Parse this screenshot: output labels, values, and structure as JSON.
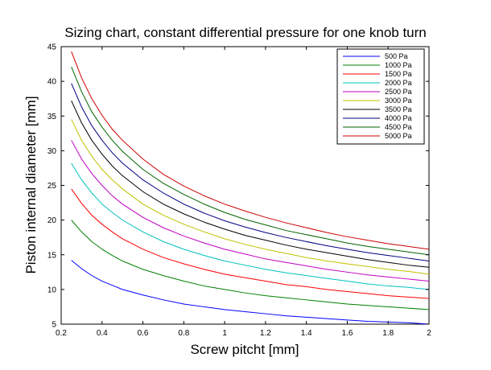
{
  "chart_data": {
    "type": "line",
    "title": "Sizing chart, constant differential pressure for one knob turn",
    "xlabel": "Screw pitcht [mm]",
    "ylabel": "Piston internal diameter [mm]",
    "xlim": [
      0.2,
      2.0
    ],
    "ylim": [
      5,
      45
    ],
    "xticks": [
      0.2,
      0.4,
      0.6,
      0.8,
      1.0,
      1.2,
      1.4,
      1.6,
      1.8,
      2.0
    ],
    "xtick_labels": [
      "0.2",
      "0.4",
      "0.6",
      "0.8",
      "1",
      "1.2",
      "1.4",
      "1.6",
      "1.8",
      "2"
    ],
    "yticks": [
      5,
      10,
      15,
      20,
      25,
      30,
      35,
      40,
      45
    ],
    "ytick_labels": [
      "5",
      "10",
      "15",
      "20",
      "25",
      "30",
      "35",
      "40",
      "45"
    ],
    "grid": false,
    "legend_position": "top-right",
    "x": [
      0.25,
      0.3,
      0.35,
      0.4,
      0.45,
      0.5,
      0.6,
      0.7,
      0.8,
      0.9,
      1.0,
      1.1,
      1.2,
      1.3,
      1.4,
      1.5,
      1.6,
      1.7,
      1.8,
      1.9,
      2.0
    ],
    "series": [
      {
        "name": "500 Pa",
        "color": "#0000ff",
        "values": [
          14.2,
          13.0,
          12.0,
          11.2,
          10.6,
          10.0,
          9.2,
          8.5,
          7.9,
          7.5,
          7.1,
          6.8,
          6.5,
          6.2,
          6.0,
          5.8,
          5.6,
          5.4,
          5.3,
          5.2,
          5.0
        ]
      },
      {
        "name": "1000 Pa",
        "color": "#008000",
        "values": [
          20.0,
          18.3,
          16.9,
          15.8,
          14.9,
          14.1,
          12.9,
          12.0,
          11.2,
          10.5,
          10.0,
          9.5,
          9.1,
          8.8,
          8.5,
          8.2,
          7.9,
          7.7,
          7.5,
          7.3,
          7.1
        ]
      },
      {
        "name": "1500 Pa",
        "color": "#ff0000",
        "values": [
          24.5,
          22.4,
          20.7,
          19.4,
          18.3,
          17.3,
          15.8,
          14.6,
          13.7,
          12.9,
          12.2,
          11.7,
          11.2,
          10.7,
          10.4,
          10.0,
          9.7,
          9.4,
          9.1,
          8.9,
          8.7
        ]
      },
      {
        "name": "2000 Pa",
        "color": "#00c0c0",
        "values": [
          28.2,
          25.8,
          23.9,
          22.3,
          21.1,
          20.0,
          18.3,
          16.9,
          15.8,
          14.9,
          14.1,
          13.5,
          12.9,
          12.4,
          12.0,
          11.6,
          11.2,
          10.8,
          10.5,
          10.3,
          10.0
        ]
      },
      {
        "name": "2500 Pa",
        "color": "#c000c0",
        "values": [
          31.5,
          28.8,
          26.7,
          25.0,
          23.5,
          22.3,
          20.4,
          18.9,
          17.7,
          16.7,
          15.8,
          15.1,
          14.4,
          13.9,
          13.4,
          12.9,
          12.5,
          12.1,
          11.8,
          11.5,
          11.2
        ]
      },
      {
        "name": "3000 Pa",
        "color": "#c0c000",
        "values": [
          34.5,
          31.5,
          29.2,
          27.3,
          25.8,
          24.5,
          22.3,
          20.7,
          19.4,
          18.3,
          17.3,
          16.5,
          15.8,
          15.2,
          14.6,
          14.1,
          13.7,
          13.3,
          12.9,
          12.6,
          12.2
        ]
      },
      {
        "name": "3500 Pa",
        "color": "#000000",
        "values": [
          37.2,
          34.0,
          31.5,
          29.5,
          27.8,
          26.4,
          24.1,
          22.3,
          20.9,
          19.7,
          18.7,
          17.8,
          17.1,
          16.4,
          15.8,
          15.3,
          14.8,
          14.3,
          13.9,
          13.5,
          13.2
        ]
      },
      {
        "name": "4000 Pa",
        "color": "#000080",
        "values": [
          39.7,
          36.3,
          33.6,
          31.5,
          29.7,
          28.2,
          25.8,
          23.9,
          22.3,
          21.0,
          19.9,
          19.0,
          18.2,
          17.5,
          16.9,
          16.3,
          15.8,
          15.3,
          14.9,
          14.5,
          14.1
        ]
      },
      {
        "name": "4500 Pa",
        "color": "#006400",
        "values": [
          42.1,
          38.5,
          35.6,
          33.4,
          31.5,
          29.9,
          27.3,
          25.3,
          23.7,
          22.3,
          21.1,
          20.1,
          19.3,
          18.5,
          17.9,
          17.3,
          16.7,
          16.2,
          15.8,
          15.4,
          15.0
        ]
      },
      {
        "name": "5000 Pa",
        "color": "#cc0000",
        "values": [
          44.3,
          40.5,
          37.5,
          35.1,
          33.1,
          31.5,
          28.8,
          26.6,
          24.9,
          23.5,
          22.3,
          21.3,
          20.4,
          19.6,
          18.9,
          18.2,
          17.6,
          17.1,
          16.6,
          16.2,
          15.8
        ]
      }
    ]
  }
}
